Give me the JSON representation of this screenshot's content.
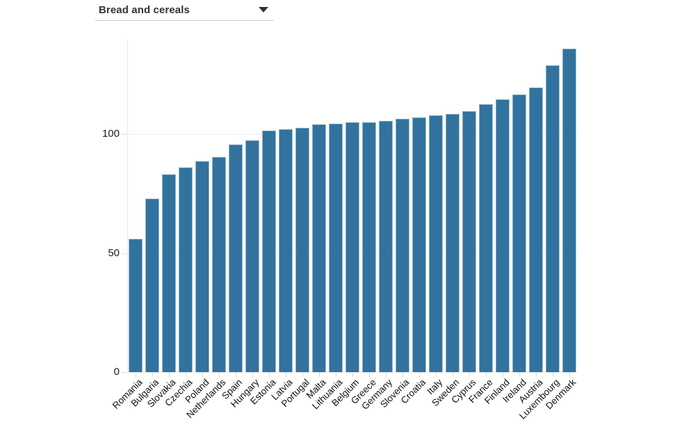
{
  "dropdown": {
    "selected": "Bread and cereals"
  },
  "icons": {
    "dropdown_caret": "caret-down-icon"
  },
  "chart_data": {
    "type": "bar",
    "title": "",
    "xlabel": "",
    "ylabel": "",
    "categories": [
      "Romania",
      "Bulgaria",
      "Slovakia",
      "Czechia",
      "Poland",
      "Netherlands",
      "Spain",
      "Hungary",
      "Estonia",
      "Latvia",
      "Portugal",
      "Malta",
      "Lithuania",
      "Belgium",
      "Greece",
      "Germany",
      "Slovenia",
      "Croatia",
      "Italy",
      "Sweden",
      "Cyprus",
      "France",
      "Finland",
      "Ireland",
      "Austria",
      "Luxembourg",
      "Denmark"
    ],
    "values": [
      56,
      73,
      83,
      86,
      88.5,
      90.5,
      95.5,
      97.5,
      101.5,
      102,
      102.5,
      104,
      104.5,
      105,
      105,
      105.5,
      106.5,
      107,
      108,
      108.5,
      109.5,
      112.5,
      114.5,
      116.5,
      119.5,
      129,
      136
    ],
    "yticks": [
      0,
      50,
      100
    ],
    "ylim": [
      0,
      140
    ],
    "grid": true,
    "legend_position": "none",
    "bar_color": "#31739e",
    "gridline_color": "#ececec",
    "axis_line_color": "#e8e8e8",
    "tick_color": "#d9d9d9",
    "label_color": "#111111"
  }
}
